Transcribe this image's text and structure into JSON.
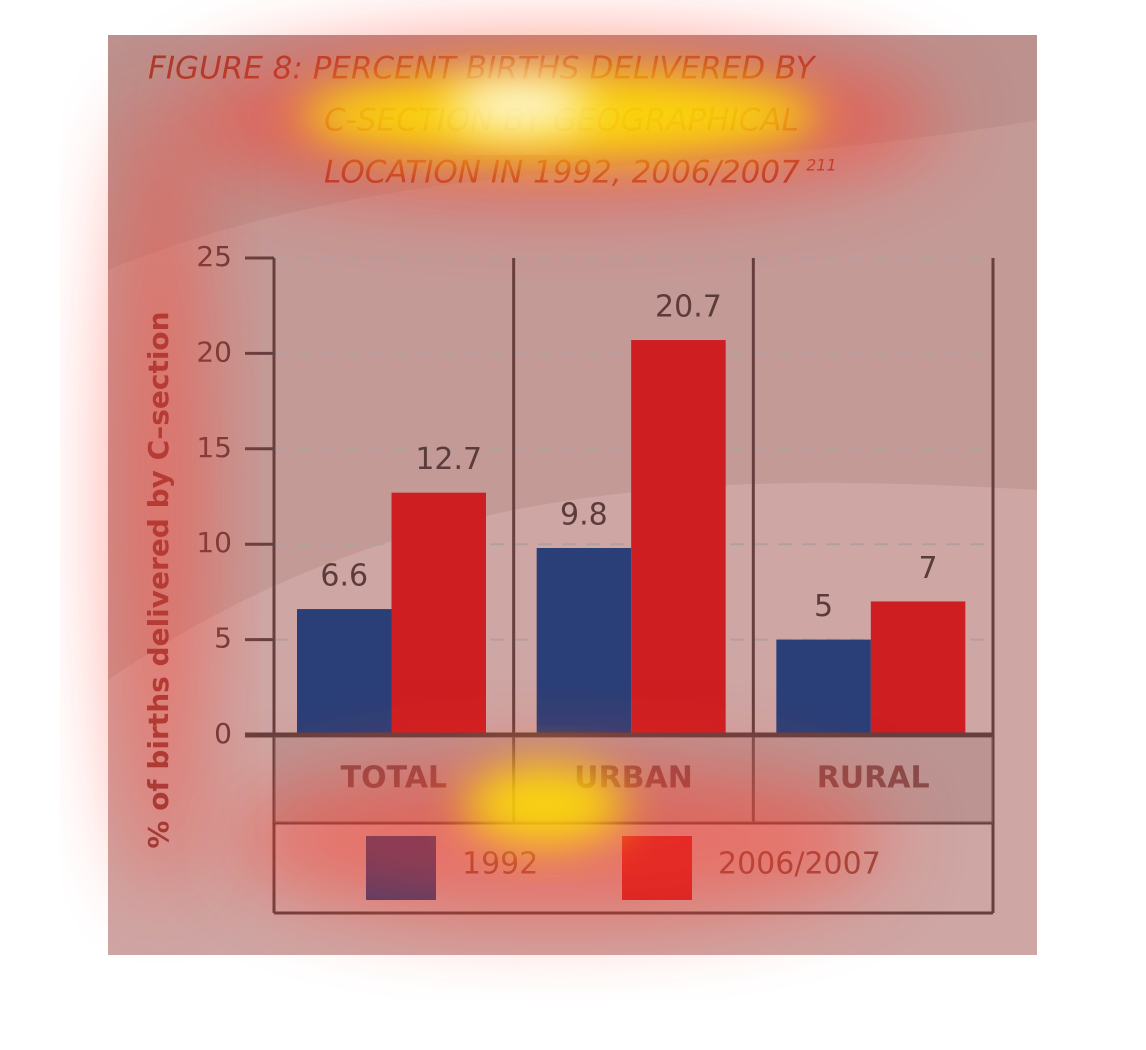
{
  "chart_data": {
    "type": "bar",
    "title": [
      "FIGURE 8: PERCENT BIRTHS DELIVERED BY",
      "C-SECTION BY GEOGRAPHICAL",
      "LOCATION IN 1992, 2006/2007"
    ],
    "title_note": "211",
    "ylabel": "% of births delivered by C–section",
    "categories": [
      "TOTAL",
      "URBAN",
      "RURAL"
    ],
    "series": [
      {
        "name": "1992",
        "color": "#003f87",
        "values": [
          6.6,
          9.8,
          5
        ]
      },
      {
        "name": "2006/2007",
        "color": "#c8161d",
        "values": [
          12.7,
          20.7,
          7
        ]
      }
    ],
    "ylim": [
      0,
      25
    ],
    "yticks": [
      0,
      5,
      10,
      15,
      20,
      25
    ],
    "grid": true
  }
}
